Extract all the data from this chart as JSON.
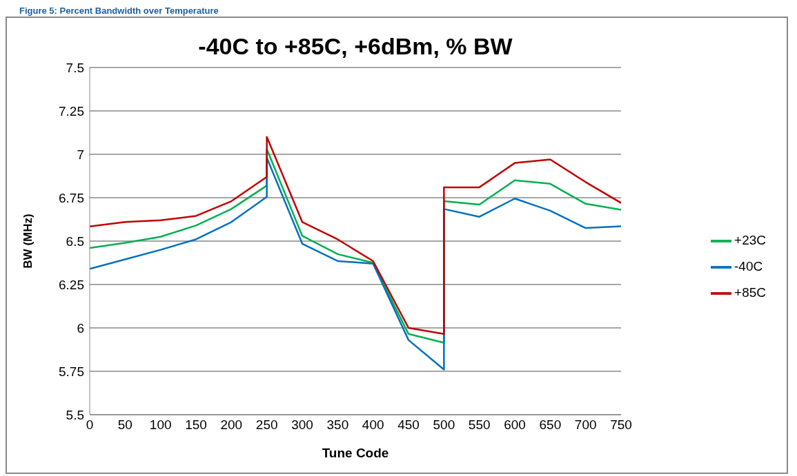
{
  "chart_data": {
    "type": "line",
    "title": "-40C to +85C, +6dBm, % BW",
    "xlabel": "Tune Code",
    "ylabel": "BW (MHz)",
    "annotations": [
      "Figure 5: Percent Bandwidth over Temperature"
    ],
    "x": [
      0,
      50,
      100,
      150,
      200,
      250,
      250,
      300,
      350,
      400,
      450,
      500,
      500,
      550,
      600,
      650,
      700,
      750
    ],
    "series": [
      {
        "name": "+23C",
        "color": "#00b050",
        "values": [
          6.46,
          6.49,
          6.525,
          6.59,
          6.685,
          6.82,
          7.03,
          6.53,
          6.425,
          6.375,
          5.965,
          5.915,
          6.73,
          6.71,
          6.85,
          6.83,
          6.715,
          6.68
        ]
      },
      {
        "name": "-40C",
        "color": "#0070c0",
        "values": [
          6.34,
          6.395,
          6.45,
          6.51,
          6.61,
          6.755,
          6.98,
          6.485,
          6.385,
          6.37,
          5.93,
          5.76,
          6.685,
          6.64,
          6.745,
          6.675,
          6.575,
          6.585
        ]
      },
      {
        "name": "+85C",
        "color": "#c00000",
        "values": [
          6.584,
          6.61,
          6.62,
          6.645,
          6.73,
          6.87,
          7.1,
          6.61,
          6.51,
          6.385,
          6.0,
          5.965,
          6.81,
          6.81,
          6.95,
          6.97,
          6.84,
          6.72
        ]
      }
    ],
    "xlim": [
      0,
      750
    ],
    "xticks": [
      0,
      50,
      100,
      150,
      200,
      250,
      300,
      350,
      400,
      450,
      500,
      550,
      600,
      650,
      700,
      750
    ],
    "ylim": [
      5.5,
      7.5
    ],
    "yticks": [
      5.5,
      5.75,
      6,
      6.25,
      6.5,
      6.75,
      7,
      7.25,
      7.5
    ],
    "grid": "y",
    "legend": "right",
    "marker": "none",
    "line_style": "solid"
  }
}
